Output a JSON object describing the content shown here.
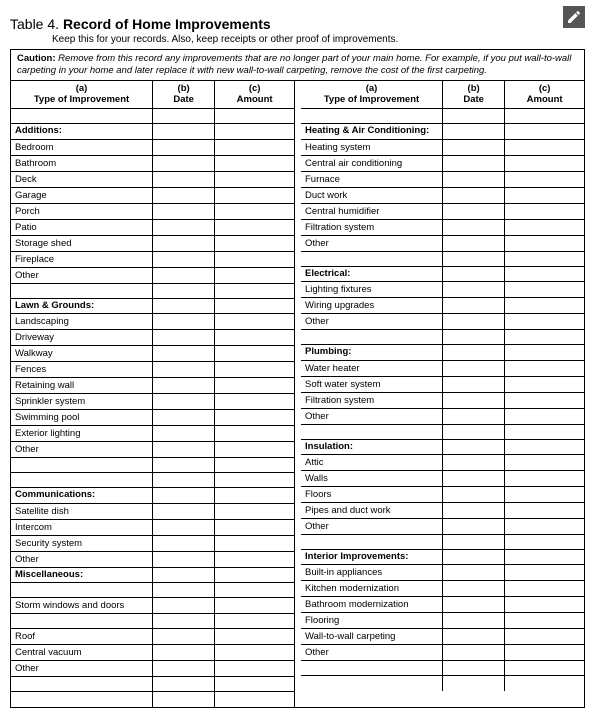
{
  "icon": "pencil-icon",
  "table_number": "Table 4.",
  "table_title": "Record of Home Improvements",
  "subtitle": "Keep this for your records. Also, keep receipts or other proof of improvements.",
  "caution_label": "Caution:",
  "caution_text": "Remove from this record any improvements that are no longer part of your main home. For example, if you put wall-to-wall carpeting in your home and later replace it with new wall-to-wall carpeting, remove the cost of the first carpeting.",
  "headers": {
    "a_letter": "(a)",
    "a_label": "Type of Improvement",
    "b_letter": "(b)",
    "b_label": "Date",
    "c_letter": "(c)",
    "c_label": "Amount"
  },
  "left_rows": [
    {
      "t": "blank"
    },
    {
      "t": "cat",
      "label": "Additions:"
    },
    {
      "t": "item",
      "label": "Bedroom"
    },
    {
      "t": "item",
      "label": "Bathroom"
    },
    {
      "t": "item",
      "label": "Deck"
    },
    {
      "t": "item",
      "label": "Garage"
    },
    {
      "t": "item",
      "label": "Porch"
    },
    {
      "t": "item",
      "label": "Patio"
    },
    {
      "t": "item",
      "label": "Storage shed"
    },
    {
      "t": "item",
      "label": "Fireplace"
    },
    {
      "t": "item",
      "label": "Other"
    },
    {
      "t": "blank"
    },
    {
      "t": "cat",
      "label": "Lawn & Grounds:"
    },
    {
      "t": "item",
      "label": "Landscaping"
    },
    {
      "t": "item",
      "label": "Driveway"
    },
    {
      "t": "item",
      "label": "Walkway"
    },
    {
      "t": "item",
      "label": "Fences"
    },
    {
      "t": "item",
      "label": "Retaining wall"
    },
    {
      "t": "item",
      "label": "Sprinkler system"
    },
    {
      "t": "item",
      "label": "Swimming pool"
    },
    {
      "t": "item",
      "label": "Exterior lighting"
    },
    {
      "t": "item",
      "label": "Other"
    },
    {
      "t": "blank"
    },
    {
      "t": "blank"
    },
    {
      "t": "cat",
      "label": "Communications:"
    },
    {
      "t": "item",
      "label": "Satellite dish"
    },
    {
      "t": "item",
      "label": "Intercom"
    },
    {
      "t": "item",
      "label": "Security system"
    },
    {
      "t": "item",
      "label": "Other"
    },
    {
      "t": "cat",
      "label": "Miscellaneous:"
    },
    {
      "t": "blank"
    },
    {
      "t": "item",
      "label": "Storm windows and doors"
    },
    {
      "t": "blank"
    },
    {
      "t": "item",
      "label": "Roof"
    },
    {
      "t": "item",
      "label": "Central vacuum"
    },
    {
      "t": "item",
      "label": "Other"
    },
    {
      "t": "blank"
    },
    {
      "t": "blank"
    }
  ],
  "right_rows": [
    {
      "t": "blank"
    },
    {
      "t": "cat",
      "label": "Heating & Air Conditioning:"
    },
    {
      "t": "item",
      "label": "Heating system"
    },
    {
      "t": "item",
      "label": "Central air conditioning"
    },
    {
      "t": "item",
      "label": "Furnace"
    },
    {
      "t": "item",
      "label": "Duct work"
    },
    {
      "t": "item",
      "label": "Central humidifier"
    },
    {
      "t": "item",
      "label": "Filtration system"
    },
    {
      "t": "item",
      "label": "Other"
    },
    {
      "t": "blank"
    },
    {
      "t": "cat",
      "label": "Electrical:"
    },
    {
      "t": "item",
      "label": "Lighting fixtures"
    },
    {
      "t": "item",
      "label": "Wiring upgrades"
    },
    {
      "t": "item",
      "label": "Other"
    },
    {
      "t": "blank"
    },
    {
      "t": "cat",
      "label": "Plumbing:"
    },
    {
      "t": "item",
      "label": "Water heater"
    },
    {
      "t": "item",
      "label": "Soft water system"
    },
    {
      "t": "item",
      "label": "Filtration system"
    },
    {
      "t": "item",
      "label": "Other"
    },
    {
      "t": "blank"
    },
    {
      "t": "cat",
      "label": "Insulation:"
    },
    {
      "t": "item",
      "label": "Attic"
    },
    {
      "t": "item",
      "label": "Walls"
    },
    {
      "t": "item",
      "label": "Floors"
    },
    {
      "t": "item",
      "label": "Pipes and duct work"
    },
    {
      "t": "item",
      "label": "Other"
    },
    {
      "t": "blank"
    },
    {
      "t": "cat",
      "label": "Interior Improvements:"
    },
    {
      "t": "item",
      "label": "Built-in appliances"
    },
    {
      "t": "item",
      "label": "Kitchen modernization"
    },
    {
      "t": "item",
      "label": "Bathroom modernization"
    },
    {
      "t": "item",
      "label": "Flooring"
    },
    {
      "t": "item",
      "label": "Wall-to-wall carpeting"
    },
    {
      "t": "item",
      "label": "Other"
    },
    {
      "t": "blank"
    },
    {
      "t": "blank"
    }
  ]
}
